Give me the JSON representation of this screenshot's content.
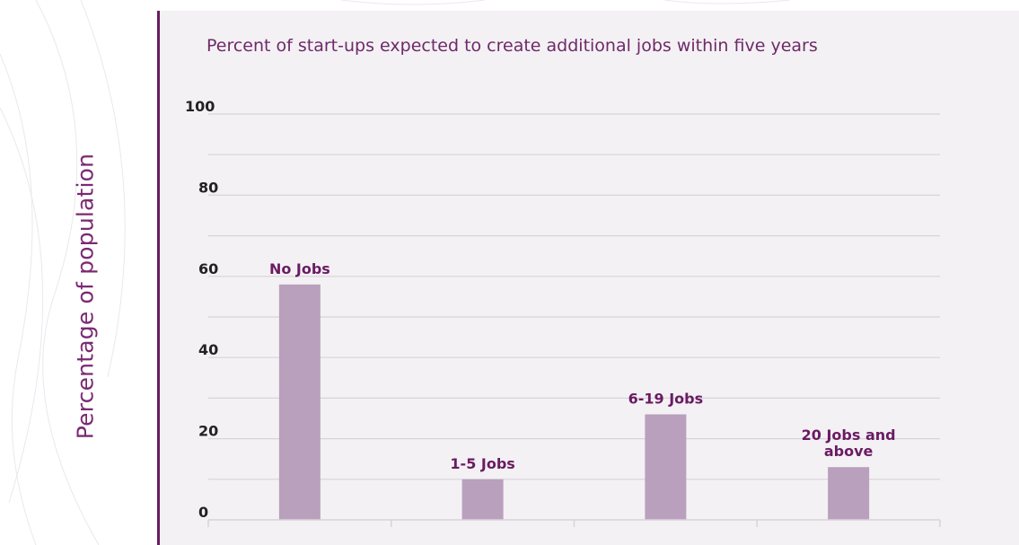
{
  "chart_data": {
    "type": "bar",
    "title": "Percent of start-ups expected to create additional jobs within five years",
    "ylabel": "Percentage of population",
    "xlabel": "",
    "categories": [
      "No Jobs",
      "1-5 Jobs",
      "6-19 Jobs",
      "20 Jobs and above"
    ],
    "category_label_lines": [
      [
        "No Jobs"
      ],
      [
        "1-5 Jobs"
      ],
      [
        "6-19 Jobs"
      ],
      [
        "20 Jobs and",
        "above"
      ]
    ],
    "values": [
      58,
      10,
      26,
      13
    ],
    "yticks": [
      0,
      20,
      40,
      60,
      80,
      100
    ],
    "ylim": [
      0,
      100
    ],
    "grid": true,
    "legend": "none"
  },
  "colors": {
    "bar": "#b9a0bd",
    "accent": "#6a1b63",
    "panel": "#f4f1f4",
    "grid": "#d8d3d8",
    "tick_text": "#222222"
  }
}
